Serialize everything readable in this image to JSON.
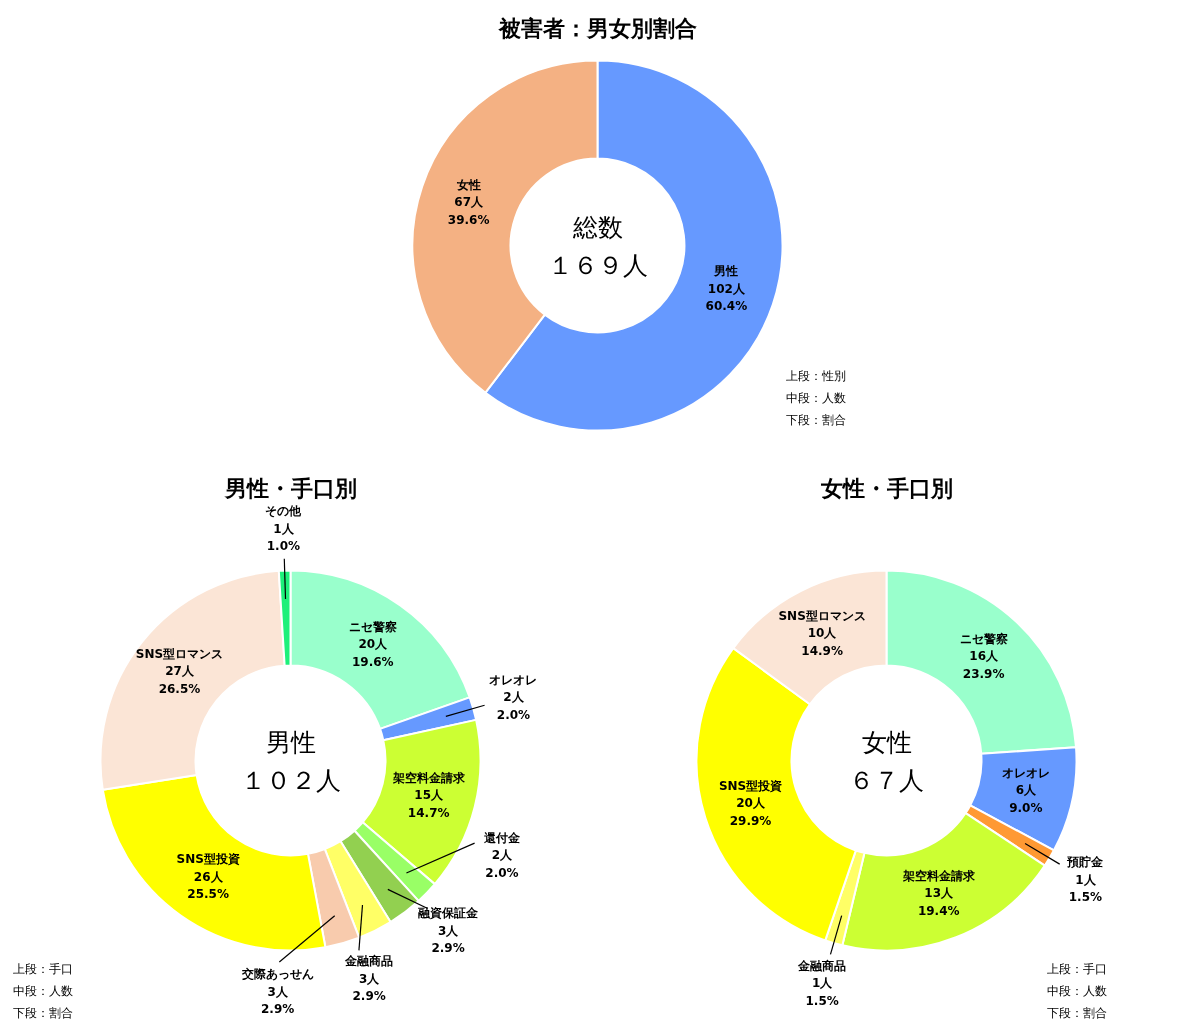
{
  "chart_data": [
    {
      "type": "donut",
      "title": "被害者：男女別割合",
      "categories": [
        "男性",
        "女性"
      ],
      "values": [
        102,
        67
      ],
      "colors": [
        "#6699ff",
        "#f4b183"
      ],
      "value_labels": [
        "102人\n60.4%",
        "67人\n39.6%"
      ],
      "annotations": [
        "総数",
        "１６９人",
        "上段：性別",
        "中段：人数",
        "下段：割合"
      ]
    },
    {
      "type": "donut",
      "title": "男性・手口別",
      "categories": [
        "ニセ警察",
        "オレオレ",
        "架空料金請求",
        "還付金",
        "融資保証金",
        "金融商品",
        "交際あっせん",
        "SNS型投資",
        "SNS型ロマンス",
        "その他"
      ],
      "values": [
        20,
        2,
        15,
        2,
        3,
        3,
        3,
        26,
        27,
        1
      ],
      "colors": [
        "#99ffcc",
        "#6699ff",
        "#ccff33",
        "#99ff66",
        "#92d050",
        "#ffff66",
        "#f8cbad",
        "#ffff00",
        "#fbe5d6",
        "#1ef07a"
      ],
      "value_labels": [
        "20人\n19.6%",
        "2人\n2.0%",
        "15人\n14.7%",
        "2人\n2.0%",
        "3人\n2.9%",
        "3人\n2.9%",
        "3人\n2.9%",
        "26人\n25.5%",
        "27人\n26.5%",
        "1人\n1.0%"
      ],
      "annotations": [
        "男性",
        "１０２人",
        "上段：手口",
        "中段：人数",
        "下段：割合"
      ]
    },
    {
      "type": "donut",
      "title": "女性・手口別",
      "categories": [
        "ニセ警察",
        "オレオレ",
        "預貯金",
        "架空料金請求",
        "金融商品",
        "SNS型投資",
        "SNS型ロマンス"
      ],
      "values": [
        16,
        6,
        1,
        13,
        1,
        20,
        10
      ],
      "colors": [
        "#99ffcc",
        "#6699ff",
        "#ff9933",
        "#ccff33",
        "#ffff66",
        "#ffff00",
        "#fbe5d6"
      ],
      "value_labels": [
        "16人\n23.9%",
        "6人\n9.0%",
        "1人\n1.5%",
        "13人\n19.4%",
        "1人\n1.5%",
        "20人\n29.9%",
        "10人\n14.9%"
      ],
      "annotations": [
        "女性",
        "６７人",
        "上段：手口",
        "中段：人数",
        "下段：割合"
      ]
    }
  ]
}
